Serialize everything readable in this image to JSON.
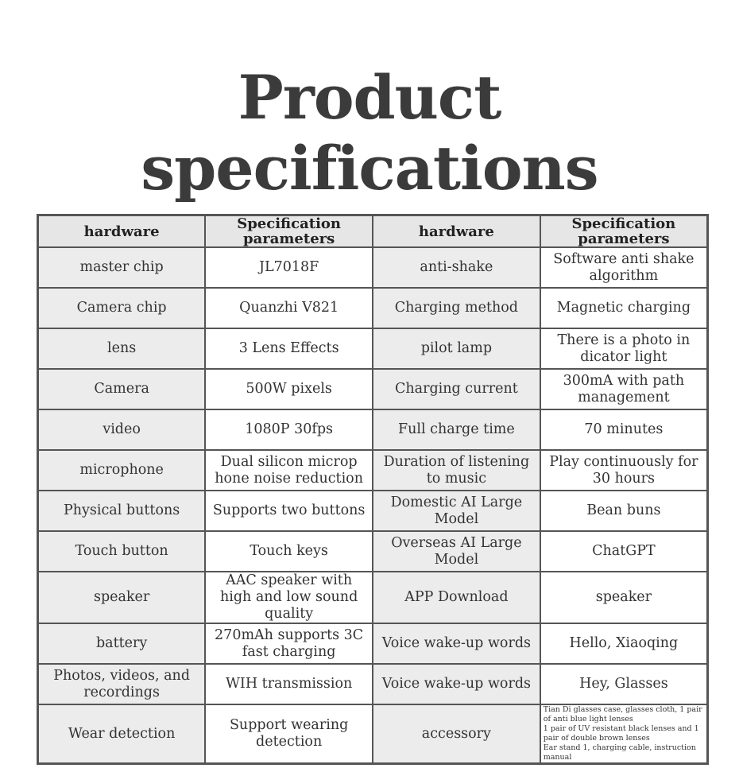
{
  "header": {
    "title": "Product specifications"
  },
  "table": {
    "columns": [
      "hardware",
      "Specification parameters",
      "hardware",
      "Specification parameters"
    ],
    "rows": [
      [
        "master chip",
        "JL7018F",
        "anti-shake",
        "Software anti shake algorithm"
      ],
      [
        "Camera chip",
        "Quanzhi V821",
        "Charging method",
        "Magnetic charging"
      ],
      [
        "lens",
        "3 Lens Effects",
        "pilot lamp",
        "There is a photo in dicator light"
      ],
      [
        "Camera",
        "500W pixels",
        "Charging current",
        "300mA with path management"
      ],
      [
        "video",
        "1080P 30fps",
        "Full charge time",
        "70 minutes"
      ],
      [
        "microphone",
        "Dual silicon microp hone noise reduction",
        "Duration of listening to music",
        "Play continuously for 30 hours"
      ],
      [
        "Physical buttons",
        "Supports two buttons",
        "Domestic AI Large Model",
        "Bean buns"
      ],
      [
        "Touch button",
        "Touch keys",
        "Overseas AI Large Model",
        "ChatGPT"
      ],
      [
        "speaker",
        "AAC speaker with high and low sound quality",
        "APP Download",
        "speaker"
      ],
      [
        "battery",
        "270mAh supports 3C fast charging",
        "Voice wake-up words",
        "Hello, Xiaoqing"
      ],
      [
        "Photos, videos, and recordings",
        "WIH transmission",
        "Voice wake-up words",
        "Hey, Glasses"
      ],
      [
        "Wear detection",
        "Support wearing detection",
        "accessory",
        [
          "Tian Di glasses case, glasses cloth, 1 pair of anti blue light lenses",
          "1 pair of UV resistant black lenses and 1 pair of double brown lenses",
          "Ear stand 1, charging cable, instruction manual"
        ]
      ]
    ]
  }
}
